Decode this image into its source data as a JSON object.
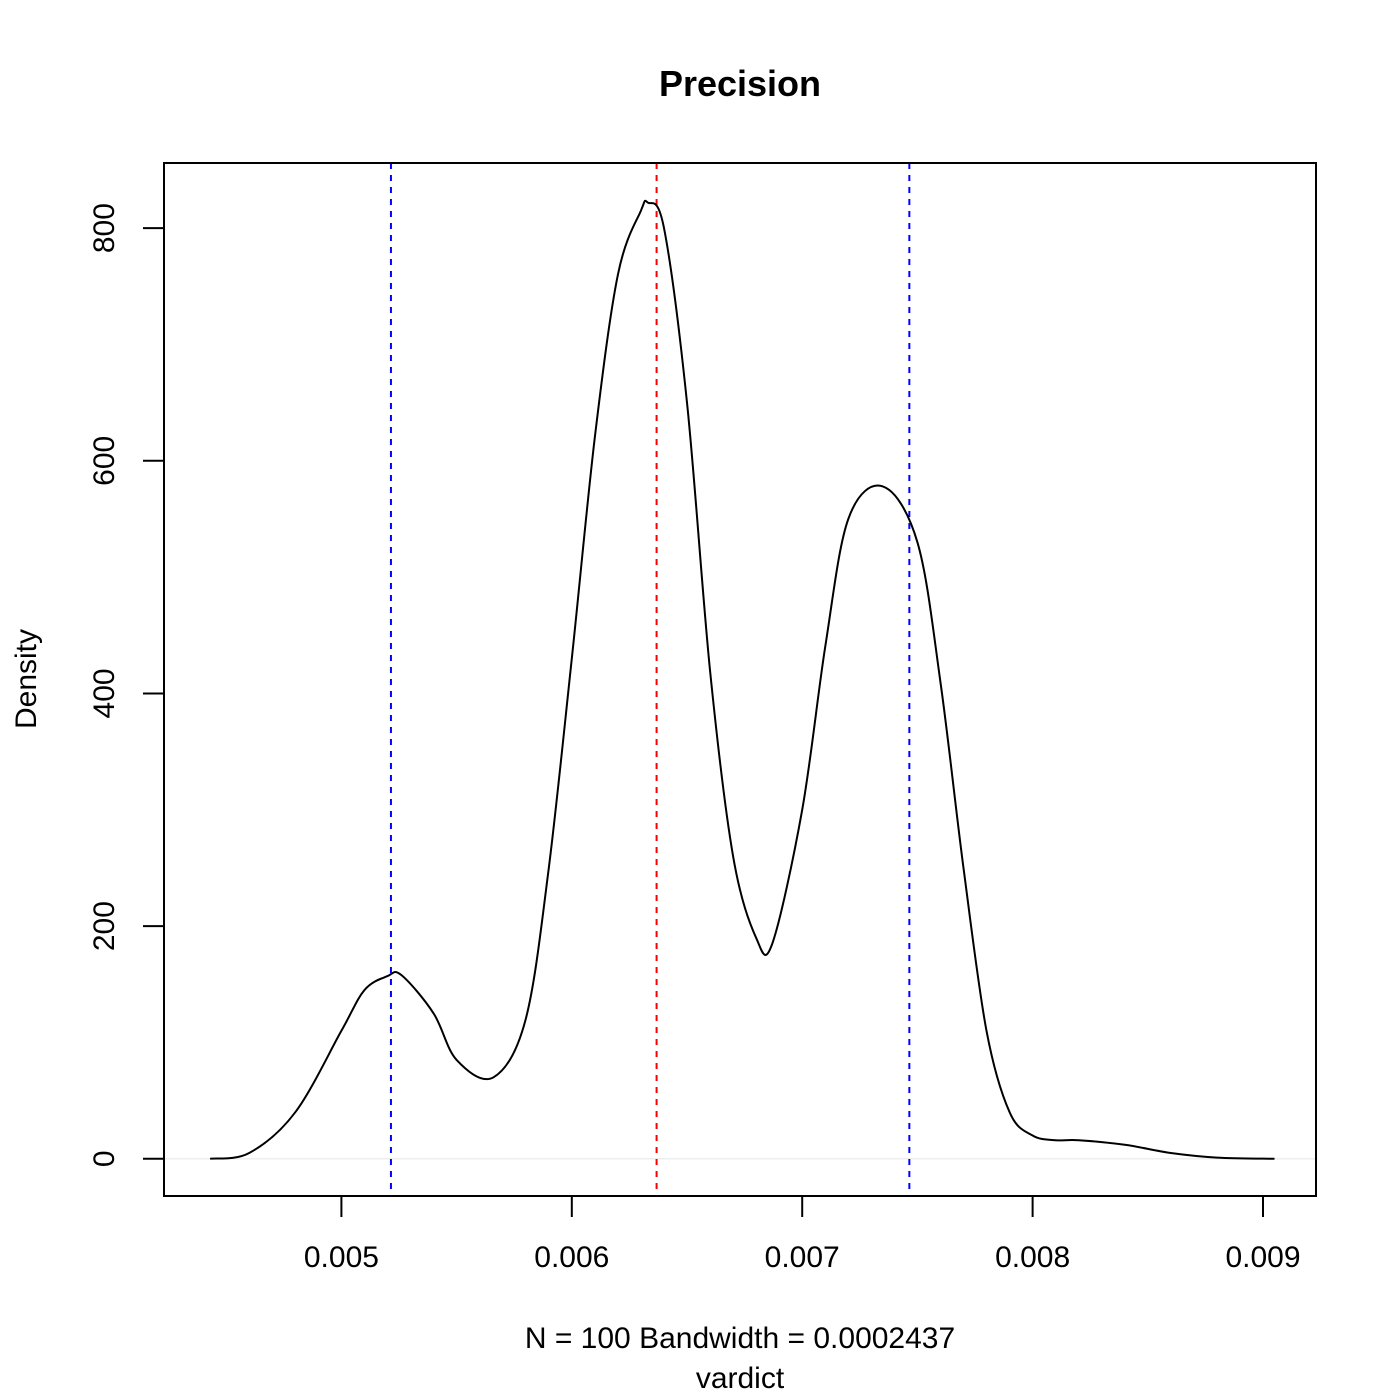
{
  "chart_data": {
    "type": "line",
    "title": "Precision",
    "xlabel": "N = 100   Bandwidth = 0.0002437",
    "xlabel2": "vardict",
    "ylabel": "Density",
    "xlim": [
      0.00423,
      0.00923
    ],
    "ylim": [
      -32,
      856
    ],
    "x_ticks": [
      0.005,
      0.006,
      0.007,
      0.008,
      0.009
    ],
    "x_tick_labels": [
      "0.005",
      "0.006",
      "0.007",
      "0.008",
      "0.009"
    ],
    "y_ticks": [
      0,
      200,
      400,
      600,
      800
    ],
    "y_tick_labels": [
      "0",
      "200",
      "400",
      "600",
      "800"
    ],
    "grid": false,
    "legend": "none",
    "zero_line": true,
    "series": [
      {
        "color": "#000000",
        "x": [
          0.00443,
          0.0046,
          0.0048,
          0.005,
          0.0051,
          0.0052,
          0.00526,
          0.0054,
          0.0055,
          0.00566,
          0.0058,
          0.0059,
          0.006,
          0.0061,
          0.0062,
          0.0063,
          0.00633,
          0.0064,
          0.0065,
          0.0066,
          0.0067,
          0.0068,
          0.00687,
          0.007,
          0.0071,
          0.0072,
          0.00735,
          0.0075,
          0.0076,
          0.0077,
          0.0078,
          0.0079,
          0.008,
          0.0081,
          0.0082,
          0.0084,
          0.0086,
          0.0088,
          0.00905
        ],
        "y": [
          0,
          5,
          40,
          110,
          145,
          157,
          158,
          125,
          85,
          70,
          120,
          250,
          430,
          620,
          760,
          815,
          822,
          800,
          650,
          420,
          260,
          190,
          185,
          300,
          440,
          550,
          578,
          530,
          410,
          250,
          110,
          40,
          20,
          16,
          16,
          12,
          5,
          1,
          0
        ]
      }
    ],
    "vertical_lines": [
      {
        "x": 0.005215,
        "color": "#0000ff",
        "style": "dashed"
      },
      {
        "x": 0.006368,
        "color": "#ff0000",
        "style": "dashed"
      },
      {
        "x": 0.007465,
        "color": "#0000ff",
        "style": "dashed"
      }
    ]
  }
}
